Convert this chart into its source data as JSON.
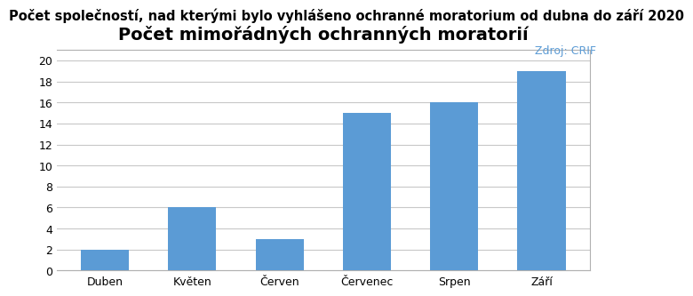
{
  "title_above": "Počet společností, nad kterými bylo vyhlášeno ochranné moratorium od dubna do září 2020",
  "source_label": "Zdroj: CRIF",
  "chart_title": "Počet mimořádných ochranných moratorií",
  "categories": [
    "Duben",
    "Květen",
    "Červen",
    "Červenec",
    "Srpen",
    "Září"
  ],
  "values": [
    2,
    6,
    3,
    15,
    16,
    19
  ],
  "bar_color": "#5B9BD5",
  "ylim": [
    0,
    21
  ],
  "yticks": [
    0,
    2,
    4,
    6,
    8,
    10,
    12,
    14,
    16,
    18,
    20
  ],
  "background_color": "#ffffff",
  "chart_bg_color": "#ffffff",
  "title_above_fontsize": 10.5,
  "source_fontsize": 9,
  "chart_title_fontsize": 14,
  "tick_label_fontsize": 9,
  "source_color": "#5B9BD5",
  "title_color": "#000000",
  "grid_color": "#c8c8c8",
  "border_color": "#b0b0b0"
}
